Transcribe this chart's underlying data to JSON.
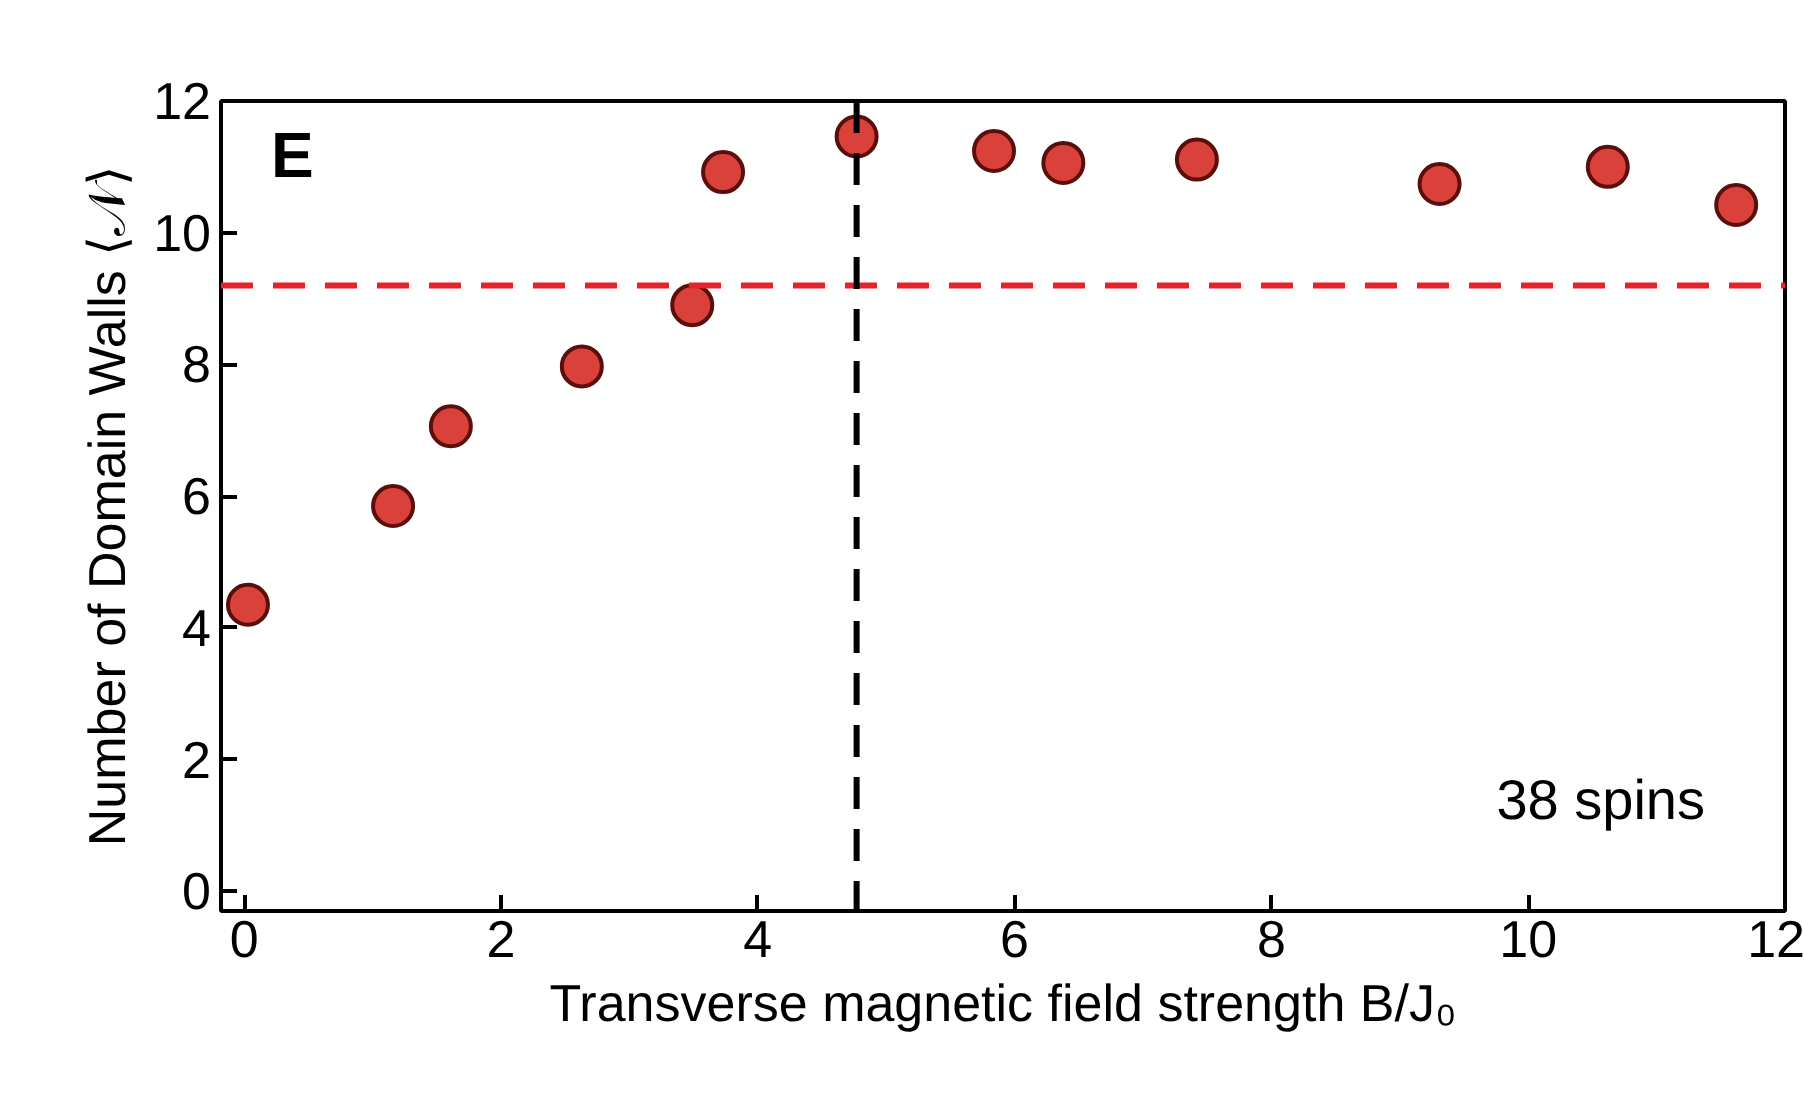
{
  "chart_data": {
    "type": "scatter",
    "xlabel": "Transverse magnetic field strength B/J₀",
    "ylabel": "Number of Domain Walls ⟨𝒩⟩",
    "x": [
      0.03,
      1.16,
      1.61,
      2.63,
      3.49,
      3.73,
      4.77,
      5.84,
      6.38,
      7.42,
      9.31,
      10.62,
      11.62
    ],
    "series": [
      {
        "color": "#d9413a",
        "values": [
          4.35,
          5.85,
          7.06,
          7.97,
          8.9,
          10.92,
          11.46,
          11.24,
          11.06,
          11.11,
          10.74,
          11.0,
          10.42
        ]
      }
    ],
    "marker": "circle",
    "xlim": [
      -0.18,
      12.0
    ],
    "ylim": [
      -0.3,
      12.0
    ],
    "xticks": [
      0,
      2,
      4,
      6,
      8,
      10,
      12
    ],
    "yticks": [
      0,
      2,
      4,
      6,
      8,
      10,
      12
    ],
    "grid": false,
    "ref_lines": [
      {
        "axis": "y",
        "value": 9.2,
        "color": "#e8222a",
        "line_style": "dashed"
      },
      {
        "axis": "x",
        "value": 4.77,
        "color": "#000000",
        "line_style": "dashed"
      }
    ],
    "annotations": [
      "E",
      "38 spins"
    ]
  }
}
